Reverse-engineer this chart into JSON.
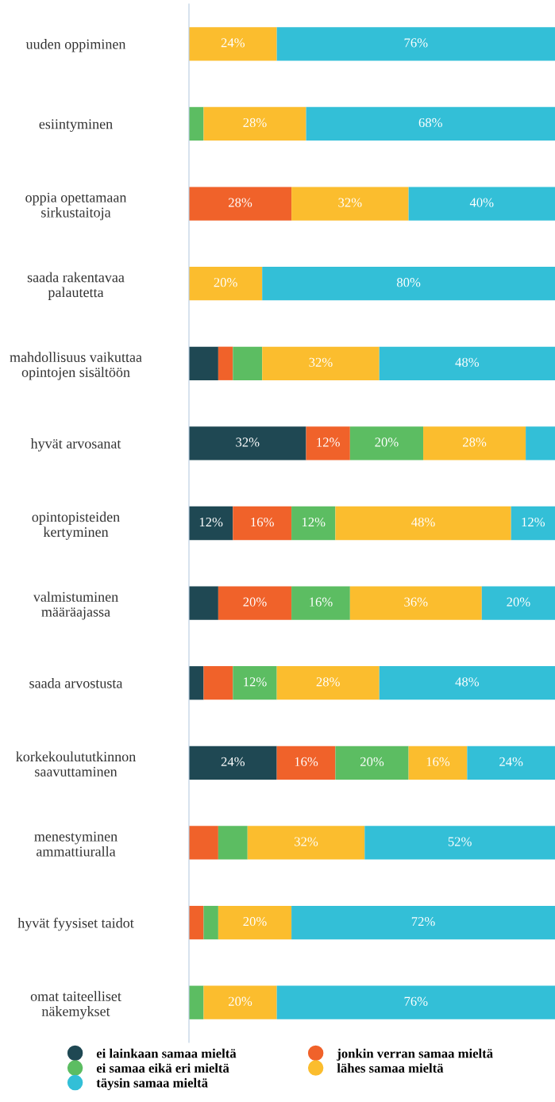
{
  "chart_data": {
    "type": "bar",
    "orientation": "horizontal",
    "stacked": true,
    "xlim": [
      0,
      100
    ],
    "tick_labels": "y",
    "grid": false,
    "legend": "bottom",
    "categories": [
      "uuden oppiminen",
      "esiintyminen",
      "oppia opettamaan\nsirkustaitoja",
      "saada rakentavaa\npalautetta",
      "mahdollisuus vaikuttaa\nopintojen sisältöön",
      "hyvät arvosanat",
      "opintopisteiden\nkertyminen",
      "valmistuminen\nmääräajassa",
      "saada arvostusta",
      "korkekoulututkinnon\nsaavuttaminen",
      "menestyminen\nammattiuralla",
      "hyvät fyysiset taidot",
      "omat taiteelliset\nnäkemykset"
    ],
    "series": [
      {
        "name": "ei lainkaan samaa mieltä",
        "color": "#1f4853",
        "values": [
          0,
          0,
          0,
          0,
          8,
          32,
          12,
          8,
          4,
          24,
          0,
          0,
          0
        ],
        "value_labels": [
          null,
          null,
          null,
          null,
          null,
          "32%",
          "12%",
          null,
          null,
          "24%",
          null,
          null,
          null
        ]
      },
      {
        "name": "jonkin verran samaa mieltä",
        "color": "#f0622a",
        "values": [
          0,
          0,
          28,
          0,
          4,
          12,
          16,
          20,
          8,
          16,
          8,
          4,
          0
        ],
        "value_labels": [
          null,
          null,
          "28%",
          null,
          null,
          "12%",
          "16%",
          "20%",
          null,
          "16%",
          null,
          null,
          null
        ]
      },
      {
        "name": "ei samaa eikä eri mieltä",
        "color": "#5cbd62",
        "values": [
          0,
          4,
          0,
          0,
          8,
          20,
          12,
          16,
          12,
          20,
          8,
          4,
          4
        ],
        "value_labels": [
          null,
          null,
          null,
          null,
          null,
          "20%",
          "12%",
          "16%",
          "12%",
          "20%",
          null,
          null,
          null
        ]
      },
      {
        "name": "lähes samaa mieltä",
        "color": "#fbbd2e",
        "values": [
          24,
          28,
          32,
          20,
          32,
          28,
          48,
          36,
          28,
          16,
          32,
          20,
          20
        ],
        "value_labels": [
          "24%",
          "28%",
          "32%",
          "20%",
          "32%",
          "28%",
          "48%",
          "36%",
          "28%",
          "16%",
          "32%",
          "20%",
          "20%"
        ]
      },
      {
        "name": "täysin samaa mieltä",
        "color": "#33bfd7",
        "values": [
          76,
          68,
          40,
          80,
          48,
          8,
          12,
          20,
          48,
          24,
          52,
          72,
          76
        ],
        "value_labels": [
          "76%",
          "68%",
          "40%",
          "80%",
          "48%",
          null,
          "12%",
          "20%",
          "48%",
          "24%",
          "52%",
          "72%",
          "76%"
        ]
      }
    ]
  }
}
